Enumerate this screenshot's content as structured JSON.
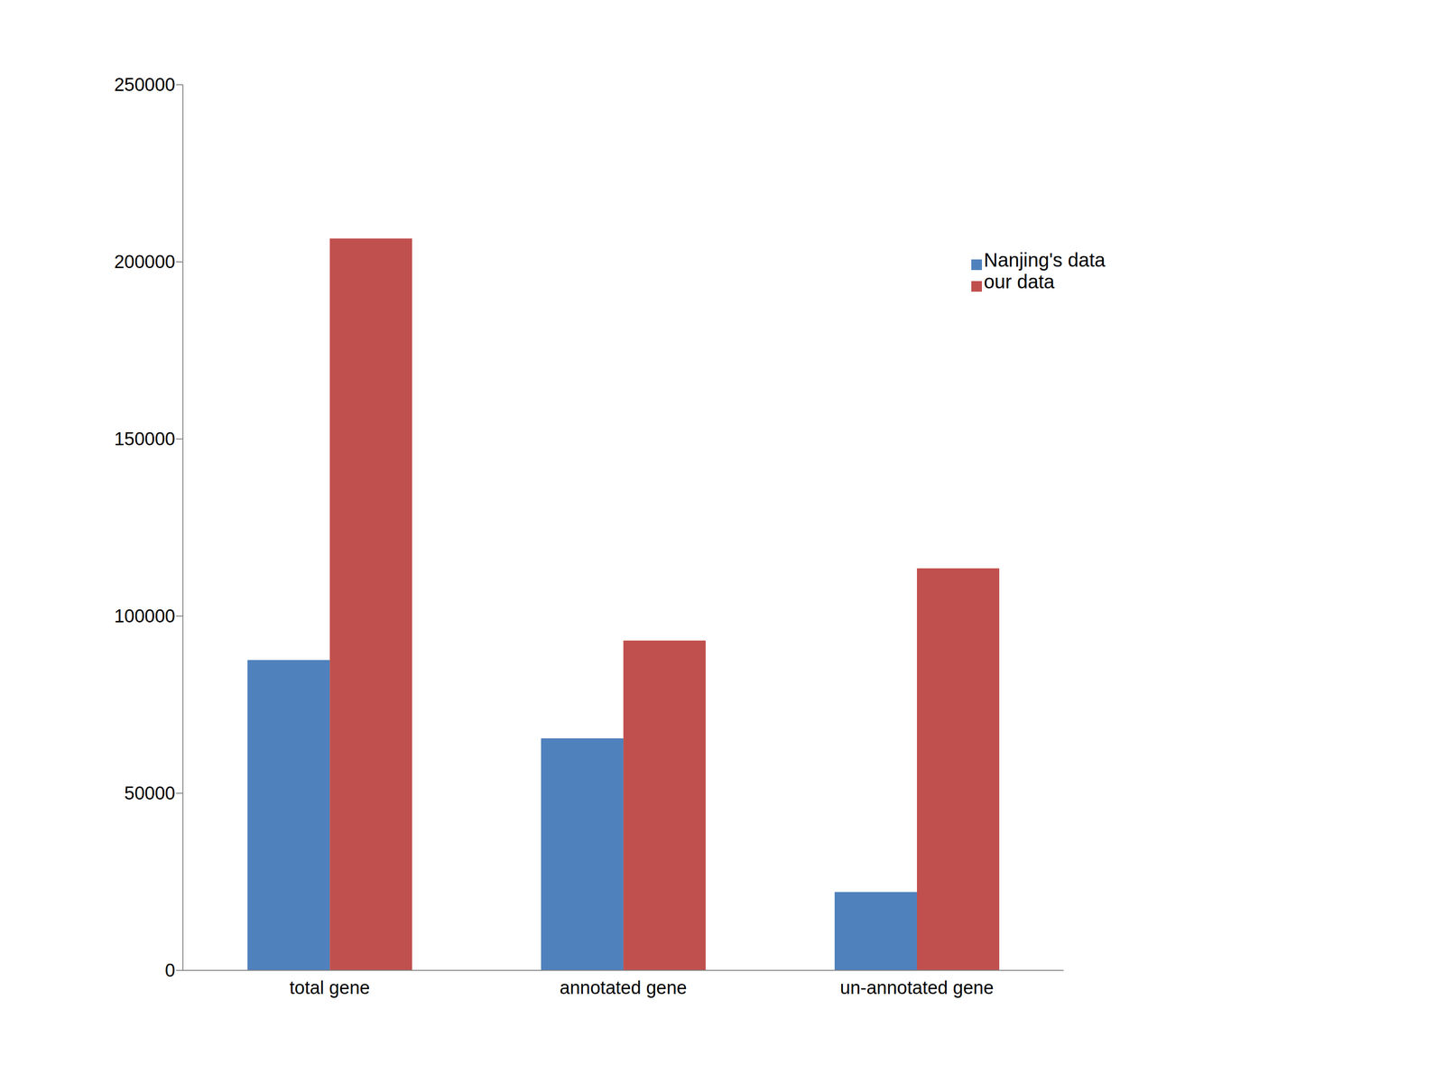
{
  "chart_data": {
    "type": "bar",
    "categories": [
      "total gene",
      "annotated gene",
      "un-annotated gene"
    ],
    "series": [
      {
        "name": "Nanjing's data",
        "color": "#4f81bd",
        "values": [
          87600,
          65500,
          22100
        ]
      },
      {
        "name": "our data",
        "color": "#c0504d",
        "values": [
          206600,
          93100,
          113500
        ]
      }
    ],
    "ylim": [
      0,
      250000
    ],
    "yticks": [
      0,
      50000,
      100000,
      150000,
      200000,
      250000
    ],
    "grid": false,
    "legend": "right"
  }
}
